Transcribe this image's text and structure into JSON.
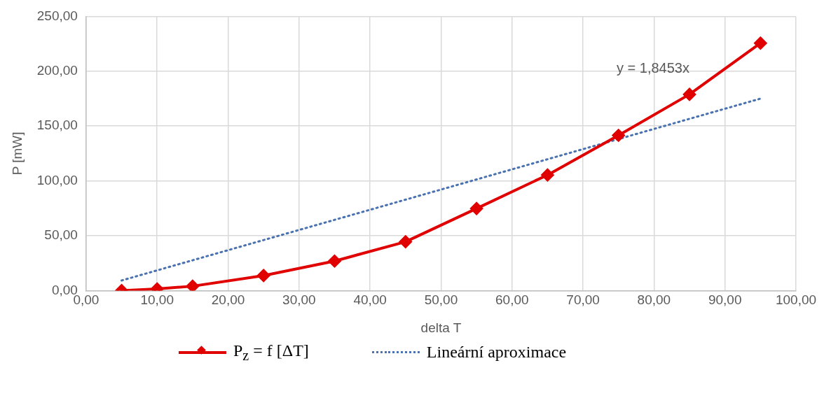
{
  "chart_data": {
    "type": "line",
    "xlabel": "delta T",
    "ylabel": "P [mW]",
    "x": [
      5,
      10,
      15,
      25,
      35,
      45,
      55,
      65,
      75,
      85,
      95
    ],
    "series": [
      {
        "name": "P$_{z}$ = f [ΔT]",
        "color": "#e00000",
        "marker": "diamond",
        "line_style": "solid",
        "values": [
          0,
          1.5,
          4,
          13.7,
          26.9,
          44.5,
          74.8,
          105.4,
          141.5,
          178.9,
          225.6
        ]
      },
      {
        "name": "Lineární aproximace",
        "color": "#4a72b0",
        "marker": "none",
        "line_style": "dotted",
        "x": [
          5,
          95
        ],
        "values": [
          9.2,
          175
        ]
      }
    ],
    "xlim": [
      0,
      100
    ],
    "xticks": [
      {
        "value": 0,
        "label": "0,00"
      },
      {
        "value": 10,
        "label": "10,00"
      },
      {
        "value": 20,
        "label": "20,00"
      },
      {
        "value": 30,
        "label": "30,00"
      },
      {
        "value": 40,
        "label": "40,00"
      },
      {
        "value": 50,
        "label": "50,00"
      },
      {
        "value": 60,
        "label": "60,00"
      },
      {
        "value": 70,
        "label": "70,00"
      },
      {
        "value": 80,
        "label": "80,00"
      },
      {
        "value": 90,
        "label": "90,00"
      },
      {
        "value": 100,
        "label": "100,00"
      }
    ],
    "ylim": [
      0,
      250
    ],
    "yticks": [
      {
        "value": 0,
        "label": "0,00"
      },
      {
        "value": 50,
        "label": "50,00"
      },
      {
        "value": 100,
        "label": "100,00"
      },
      {
        "value": 150,
        "label": "150,00"
      },
      {
        "value": 200,
        "label": "200,00"
      },
      {
        "value": 250,
        "label": "250,00"
      }
    ],
    "grid": true,
    "legend": "bottom",
    "annotations": [
      "y = 1,8453x"
    ]
  }
}
